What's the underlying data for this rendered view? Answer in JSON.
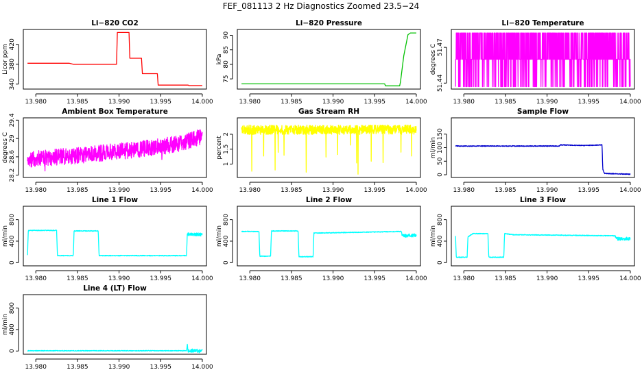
{
  "figure_title": "FEF_081113  2 Hz Diagnostics Zoomed 23.5−24",
  "chart_data": [
    {
      "type": "line",
      "title": "Li−820 CO2",
      "ylabel": "Licor ppm",
      "color": "#ff0000",
      "xlim": [
        13.9785,
        14.0005
      ],
      "ylim": [
        330,
        450
      ],
      "xticks": [
        "13.980",
        "13.985",
        "13.990",
        "13.995",
        "14.000"
      ],
      "yticks": [
        340,
        380,
        420
      ],
      "series": [
        {
          "x": [
            13.979,
            13.984,
            13.9845,
            13.9897,
            13.9898,
            13.9912,
            13.9913,
            13.9927,
            13.9928,
            13.9946,
            13.9947,
            13.9983,
            13.9984,
            14.0
          ],
          "y": [
            382,
            382,
            380,
            380,
            444,
            444,
            392,
            392,
            361,
            361,
            338,
            338,
            337,
            337
          ]
        }
      ]
    },
    {
      "type": "line",
      "title": "Li−820 Pressure",
      "ylabel": "kPa",
      "color": "#00c000",
      "xlim": [
        13.9785,
        14.0005
      ],
      "ylim": [
        71.5,
        92
      ],
      "xticks": [
        "13.980",
        "13.985",
        "13.990",
        "13.995",
        "14.000"
      ],
      "yticks": [
        75,
        80,
        85,
        90
      ],
      "series": [
        {
          "x": [
            13.979,
            13.9962,
            13.9963,
            13.998,
            13.9981,
            13.9985,
            13.999,
            13.9993,
            14.0
          ],
          "y": [
            73.3,
            73.3,
            72.6,
            72.6,
            74,
            83,
            90.2,
            90.8,
            90.8
          ]
        }
      ]
    },
    {
      "type": "line",
      "title": "Li−820 Temperature",
      "ylabel": "degrees C",
      "color": "#ff00ff",
      "xlim": [
        13.9785,
        14.0005
      ],
      "ylim": [
        51.435,
        51.485
      ],
      "xticks": [
        "13.980",
        "13.985",
        "13.990",
        "13.995",
        "14.000"
      ],
      "yticks": [
        51.44,
        51.47
      ],
      "series": [
        {
          "x": [
            13.979,
            14.0
          ],
          "y": [
            51.46,
            51.46
          ]
        }
      ]
    },
    {
      "type": "line",
      "title": "Ambient Box Temperature",
      "ylabel": "degrees C",
      "color": "#ff00ff",
      "xlim": [
        13.9785,
        14.0005
      ],
      "ylim": [
        28.15,
        29.45
      ],
      "xticks": [
        "13.980",
        "13.985",
        "13.990",
        "13.995",
        "14.000"
      ],
      "yticks": [
        28.2,
        28.6,
        29.0,
        29.4
      ],
      "series": [
        {
          "x": [
            13.979,
            13.9845,
            13.99,
            13.995,
            13.998,
            14.0
          ],
          "y": [
            28.55,
            28.62,
            28.72,
            28.82,
            28.92,
            29.05
          ]
        }
      ]
    },
    {
      "type": "line",
      "title": "Gas Stream RH",
      "ylabel": "percent",
      "color": "#ffff00",
      "xlim": [
        13.9785,
        14.0005
      ],
      "ylim": [
        0.55,
        2.55
      ],
      "xticks": [
        "13.980",
        "13.985",
        "13.990",
        "13.995",
        "14.000"
      ],
      "yticks": [
        1.0,
        1.5,
        2.0
      ],
      "series": [
        {
          "x": [
            13.979,
            14.0
          ],
          "y": [
            2.15,
            2.15
          ]
        }
      ]
    },
    {
      "type": "line",
      "title": "Sample Flow",
      "ylabel": "ml/min",
      "color": "#0000cc",
      "xlim": [
        13.9785,
        14.0005
      ],
      "ylim": [
        -10,
        210
      ],
      "xticks": [
        "13.980",
        "13.985",
        "13.990",
        "13.995",
        "14.000"
      ],
      "yticks": [
        0,
        50,
        100,
        150
      ],
      "series": [
        {
          "x": [
            13.979,
            13.9915,
            13.9916,
            13.9945,
            13.9966,
            13.9967,
            13.9969,
            14.0
          ],
          "y": [
            106,
            106,
            110,
            108,
            110,
            20,
            5,
            2
          ]
        }
      ]
    },
    {
      "type": "line",
      "title": "Line 1 Flow",
      "ylabel": "ml/min",
      "color": "#00ffff",
      "xlim": [
        13.9785,
        14.0005
      ],
      "ylim": [
        -60,
        1050
      ],
      "xticks": [
        "13.980",
        "13.985",
        "13.990",
        "13.995",
        "14.000"
      ],
      "yticks": [
        0,
        400,
        800
      ],
      "series": [
        {
          "x": [
            13.979,
            13.9791,
            13.9825,
            13.9826,
            13.9845,
            13.9846,
            13.9875,
            13.9876,
            13.9981,
            13.9982,
            14.0
          ],
          "y": [
            140,
            600,
            600,
            130,
            130,
            590,
            590,
            130,
            130,
            530,
            520
          ]
        }
      ]
    },
    {
      "type": "line",
      "title": "Line 2 Flow",
      "ylabel": "ml/min",
      "color": "#00ffff",
      "xlim": [
        13.9785,
        14.0005
      ],
      "ylim": [
        -60,
        1050
      ],
      "xticks": [
        "13.980",
        "13.985",
        "13.990",
        "13.995",
        "14.000"
      ],
      "yticks": [
        0,
        400,
        800
      ],
      "series": [
        {
          "x": [
            13.979,
            13.9811,
            13.9812,
            13.9825,
            13.9826,
            13.9858,
            13.9859,
            13.9876,
            13.9877,
            13.9982,
            13.9983,
            14.0
          ],
          "y": [
            580,
            580,
            120,
            120,
            590,
            590,
            110,
            110,
            550,
            580,
            500,
            510
          ]
        }
      ]
    },
    {
      "type": "line",
      "title": "Line 3 Flow",
      "ylabel": "ml/min",
      "color": "#00ffff",
      "xlim": [
        13.9785,
        14.0005
      ],
      "ylim": [
        -60,
        1050
      ],
      "xticks": [
        "13.980",
        "13.985",
        "13.990",
        "13.995",
        "14.000"
      ],
      "yticks": [
        0,
        400,
        800
      ],
      "series": [
        {
          "x": [
            13.979,
            13.9791,
            13.9804,
            13.9805,
            13.9811,
            13.9829,
            13.983,
            13.9848,
            13.9849,
            13.986,
            13.9982,
            13.9983,
            14.0
          ],
          "y": [
            500,
            100,
            100,
            480,
            540,
            540,
            100,
            100,
            540,
            520,
            500,
            440,
            450
          ]
        }
      ]
    },
    {
      "type": "line",
      "title": "Line 4 (LT) Flow",
      "ylabel": "ml/min",
      "color": "#00ffff",
      "xlim": [
        13.9785,
        14.0005
      ],
      "ylim": [
        -60,
        1050
      ],
      "xticks": [
        "13.980",
        "13.985",
        "13.990",
        "13.995",
        "14.000"
      ],
      "yticks": [
        0,
        400,
        800
      ],
      "series": [
        {
          "x": [
            13.979,
            13.9981,
            13.9982,
            13.9983,
            14.0
          ],
          "y": [
            5,
            5,
            100,
            5,
            5
          ]
        }
      ]
    }
  ]
}
